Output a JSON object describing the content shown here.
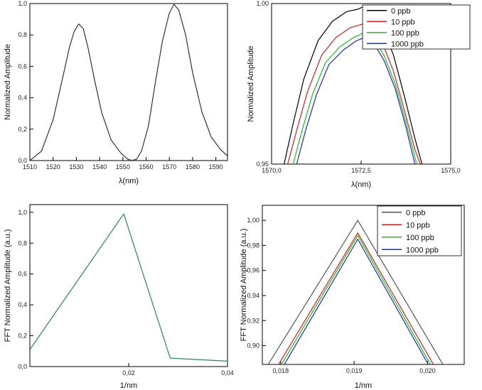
{
  "chart_data": [
    {
      "id": "p1",
      "type": "line",
      "xlabel": "λ(nm)",
      "ylabel": "Normalized Amplitude",
      "xlim": [
        1510,
        1595
      ],
      "ylim": [
        0,
        1.0
      ],
      "xticks": [
        1510,
        1520,
        1530,
        1540,
        1550,
        1560,
        1570,
        1580,
        1590
      ],
      "yticks": [
        0,
        0.2,
        0.4,
        0.6,
        0.8,
        1.0
      ],
      "xtick_labels": [
        "1510",
        "1520",
        "1530",
        "1540",
        "1550",
        "1560",
        "1570",
        "1580",
        "1590"
      ],
      "ytick_labels": [
        "0,0",
        "0,2",
        "0,4",
        "0,6",
        "0,8",
        "1,0"
      ],
      "grid": false,
      "series": [
        {
          "color": "#333333",
          "x": [
            1510,
            1515,
            1520,
            1524,
            1527,
            1529,
            1531,
            1533,
            1535,
            1538,
            1541,
            1545,
            1549,
            1552,
            1554,
            1556,
            1558,
            1561,
            1564,
            1567,
            1570,
            1572,
            1574,
            1577,
            1580,
            1584,
            1588,
            1592,
            1595
          ],
          "y": [
            0.0,
            0.06,
            0.26,
            0.52,
            0.72,
            0.82,
            0.87,
            0.84,
            0.72,
            0.5,
            0.3,
            0.13,
            0.05,
            0.01,
            0.0,
            0.01,
            0.06,
            0.22,
            0.5,
            0.76,
            0.94,
            0.995,
            0.96,
            0.8,
            0.56,
            0.31,
            0.15,
            0.07,
            0.03
          ]
        }
      ]
    },
    {
      "id": "p2",
      "type": "line",
      "xlabel": "λ(nm)",
      "ylabel": "Normalized Amplitude",
      "xlim": [
        1570.0,
        1575.0
      ],
      "ylim": [
        0.95,
        1.0
      ],
      "xticks": [
        1570.0,
        1572.5,
        1575.0
      ],
      "yticks": [
        0.95,
        1.0
      ],
      "xtick_labels": [
        "1570,0",
        "1572,5",
        "1575,0"
      ],
      "ytick_labels": [
        "0,95",
        "1,00"
      ],
      "grid": false,
      "legend_position": "top-right",
      "series": [
        {
          "name": "0 ppb",
          "color": "#000000",
          "x": [
            1570.35,
            1570.6,
            1570.9,
            1571.3,
            1571.7,
            1572.1,
            1572.4,
            1572.6,
            1572.8,
            1573.1,
            1573.4,
            1573.7,
            1574.0,
            1574.2
          ],
          "y": [
            0.95,
            0.9625,
            0.9765,
            0.9885,
            0.9945,
            0.9975,
            0.9982,
            0.9992,
            0.9975,
            0.9925,
            0.984,
            0.9715,
            0.958,
            0.95
          ]
        },
        {
          "name": "10 ppb",
          "color": "#d42020",
          "x": [
            1570.45,
            1570.7,
            1571.0,
            1571.4,
            1571.8,
            1572.2,
            1572.6,
            1572.8,
            1573.1,
            1573.4,
            1573.7,
            1574.0,
            1574.15
          ],
          "y": [
            0.95,
            0.9605,
            0.9725,
            0.984,
            0.9895,
            0.9925,
            0.9938,
            0.9925,
            0.9875,
            0.979,
            0.967,
            0.9545,
            0.95
          ]
        },
        {
          "name": "100 ppb",
          "color": "#22bb22",
          "x": [
            1570.6,
            1570.85,
            1571.15,
            1571.5,
            1571.9,
            1572.3,
            1572.6,
            1572.85,
            1573.15,
            1573.45,
            1573.75,
            1574.05
          ],
          "y": [
            0.95,
            0.9605,
            0.972,
            0.9815,
            0.9865,
            0.9895,
            0.991,
            0.9895,
            0.9835,
            0.975,
            0.963,
            0.95
          ]
        },
        {
          "name": "1000 ppb",
          "color": "#1a2fb0",
          "x": [
            1570.7,
            1570.95,
            1571.25,
            1571.6,
            1572.0,
            1572.35,
            1572.6,
            1572.85,
            1573.15,
            1573.45,
            1573.75,
            1574.0
          ],
          "y": [
            0.95,
            0.9605,
            0.9715,
            0.981,
            0.9855,
            0.9883,
            0.9895,
            0.9878,
            0.982,
            0.9735,
            0.9615,
            0.95
          ]
        }
      ]
    },
    {
      "id": "p3",
      "type": "line",
      "xlabel": "1/nm",
      "ylabel": "FFT Normalized Amplitude (a.u.)",
      "xlim": [
        0.0,
        0.04
      ],
      "ylim": [
        0,
        1.05
      ],
      "xticks": [
        0.02,
        0.04
      ],
      "yticks": [
        0,
        0.2,
        0.4,
        0.6,
        0.8,
        1.0
      ],
      "xtick_labels": [
        "0,02",
        "0,04"
      ],
      "ytick_labels": [
        "0,0",
        "0,2",
        "0,4",
        "0,6",
        "0,8",
        "1,0"
      ],
      "grid": false,
      "series": [
        {
          "color": "#2a8a50",
          "x": [
            0.0,
            0.019,
            0.0284,
            0.04
          ],
          "y": [
            0.11,
            0.99,
            0.055,
            0.035
          ]
        }
      ]
    },
    {
      "id": "p4",
      "type": "line",
      "xlabel": "1/nm",
      "ylabel": "FFT Normalized Amplitude (a.u.)",
      "xlim": [
        0.01775,
        0.0205
      ],
      "ylim": [
        0.885,
        1.012
      ],
      "xticks": [
        0.018,
        0.019,
        0.02
      ],
      "yticks": [
        0.9,
        0.92,
        0.94,
        0.96,
        0.98,
        1.0
      ],
      "xtick_labels": [
        "0,018",
        "0,019",
        "0,020"
      ],
      "ytick_labels": [
        "0,90",
        "0,92",
        "0,94",
        "0,96",
        "0,98",
        "1,00"
      ],
      "grid": false,
      "legend_position": "top-right",
      "series": [
        {
          "name": "0 ppb",
          "color": "#555555",
          "x": [
            0.01783,
            0.01905,
            0.02021
          ],
          "y": [
            0.885,
            1.0,
            0.885
          ]
        },
        {
          "name": "10 ppb",
          "color": "#d42020",
          "x": [
            0.01797,
            0.01905,
            0.02008
          ],
          "y": [
            0.885,
            0.99,
            0.885
          ]
        },
        {
          "name": "100 ppb",
          "color": "#22bb22",
          "x": [
            0.01801,
            0.01905,
            0.02004
          ],
          "y": [
            0.885,
            0.988,
            0.885
          ]
        },
        {
          "name": "1000 ppb",
          "color": "#1a2fb0",
          "x": [
            0.01805,
            0.01905,
            0.02001
          ],
          "y": [
            0.885,
            0.985,
            0.885
          ]
        }
      ]
    }
  ]
}
